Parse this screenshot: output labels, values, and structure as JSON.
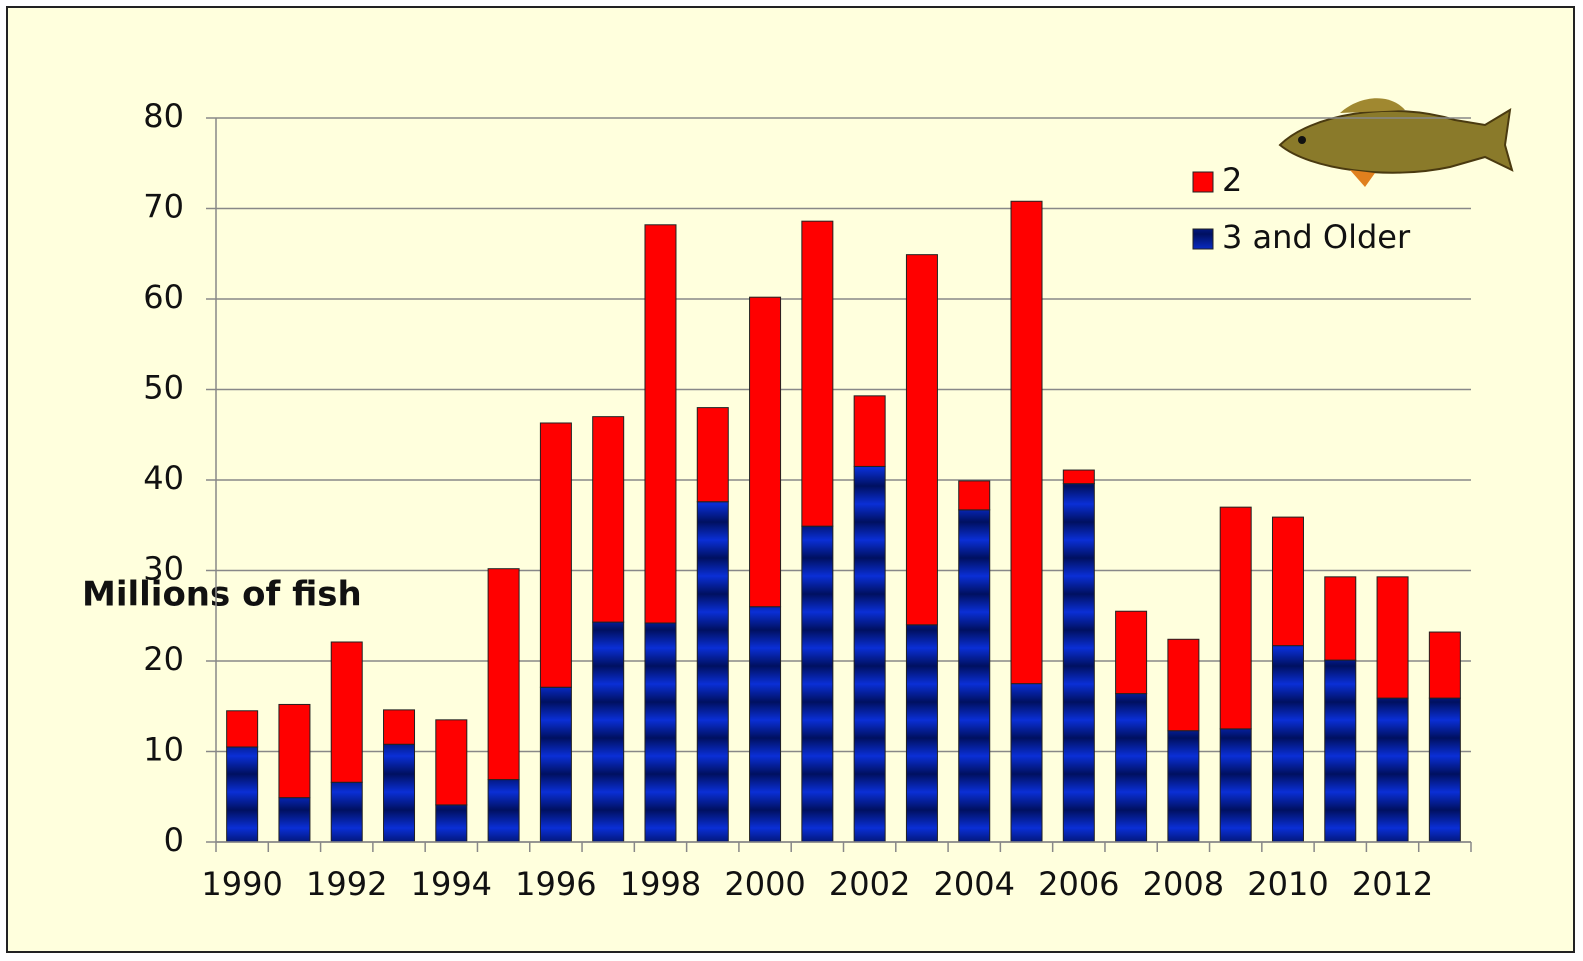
{
  "chart_data": {
    "type": "stacked-bar",
    "y_label": "Millions of fish",
    "categories": [
      "1990",
      null,
      "1992",
      null,
      "1994",
      null,
      "1996",
      null,
      "1998",
      null,
      "2000",
      null,
      "2002",
      null,
      "2004",
      null,
      "2006",
      null,
      "2008",
      null,
      "2010",
      null,
      "2012",
      null
    ],
    "series": [
      {
        "name": "3 and Older",
        "color": "#0a2fd6",
        "values": [
          10.5,
          4.9,
          6.6,
          10.8,
          4.1,
          6.9,
          17.1,
          24.3,
          24.2,
          37.6,
          26.0,
          34.9,
          41.5,
          24.0,
          36.7,
          17.5,
          39.6,
          16.4,
          12.3,
          12.5,
          21.7,
          20.1,
          15.9,
          15.9
        ]
      },
      {
        "name": "2",
        "color": "#ff0000",
        "values": [
          4.0,
          10.3,
          15.5,
          3.8,
          9.4,
          23.3,
          29.2,
          22.7,
          44.0,
          10.4,
          34.2,
          33.7,
          7.8,
          40.9,
          3.2,
          53.3,
          1.5,
          9.1,
          10.1,
          24.5,
          14.2,
          9.2,
          13.4,
          7.3
        ]
      }
    ],
    "ylim": [
      0,
      80
    ],
    "yticks": [
      0,
      10,
      20,
      30,
      40,
      50,
      60,
      70,
      80
    ],
    "grid": true,
    "legend": "top-right"
  }
}
